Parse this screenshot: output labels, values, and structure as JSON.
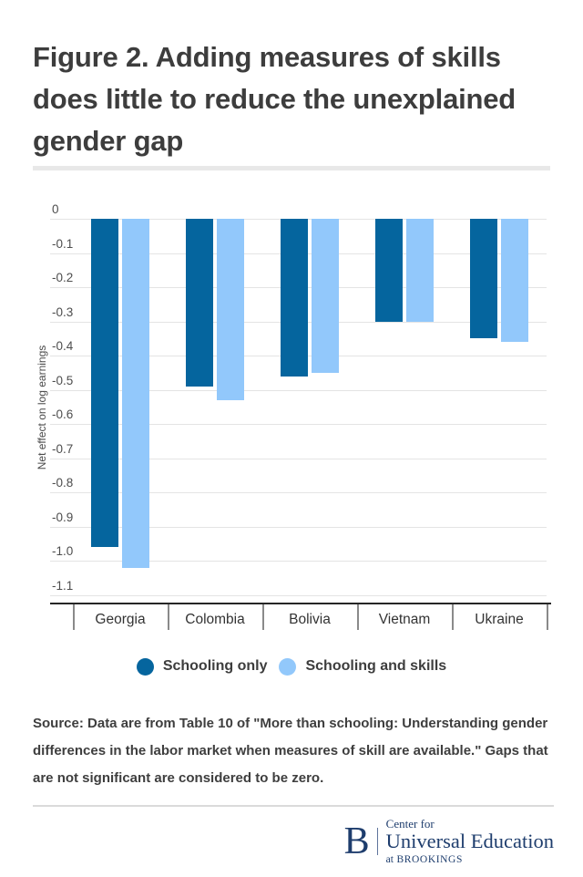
{
  "header": {
    "title": "Figure 2. Adding measures of skills does little to reduce the unexplained gender gap"
  },
  "chart_data": {
    "type": "bar",
    "title": "Figure 2. Adding measures of skills does little to reduce the unexplained gender gap",
    "categories": [
      "Georgia",
      "Colombia",
      "Bolivia",
      "Vietnam",
      "Ukraine"
    ],
    "series": [
      {
        "name": "Schooling only",
        "color": "#05659e",
        "values": [
          -0.96,
          -0.49,
          -0.46,
          -0.3,
          -0.35
        ]
      },
      {
        "name": "Schooling and skills",
        "color": "#92c8fb",
        "values": [
          -1.02,
          -0.53,
          -0.45,
          -0.3,
          -0.36
        ]
      }
    ],
    "xlabel": "",
    "ylabel": "Net effect on log earnings",
    "ylim": [
      -1.1,
      0
    ],
    "yticks": [
      0,
      -0.1,
      -0.2,
      -0.3,
      -0.4,
      -0.5,
      -0.6,
      -0.7,
      -0.8,
      -0.9,
      -1.0,
      -1.1
    ],
    "ytick_labels": [
      "0",
      "-0.1",
      "-0.2",
      "-0.3",
      "-0.4",
      "-0.5",
      "-0.6",
      "-0.7",
      "-0.8",
      "-0.9",
      "-1.0",
      "-1.1"
    ],
    "grid": true,
    "legend_position": "bottom"
  },
  "source": {
    "text": "Source: Data are from Table 10 of \"More than schooling: Understanding gender differences in the labor market when measures of skill are available.\" Gaps that are not significant are considered to be zero."
  },
  "footer": {
    "logo": {
      "initial": "B",
      "line1": "Center for",
      "line2": "Universal Education",
      "line3_prefix": "at",
      "line3_name": "BROOKINGS"
    }
  },
  "colors": {
    "series_dark": "#05659e",
    "series_light": "#92c8fb",
    "title_text": "#3d3d3d",
    "grid": "#e4e4e4",
    "axis_line": "#262626",
    "brand_navy": "#1e3d6d"
  }
}
